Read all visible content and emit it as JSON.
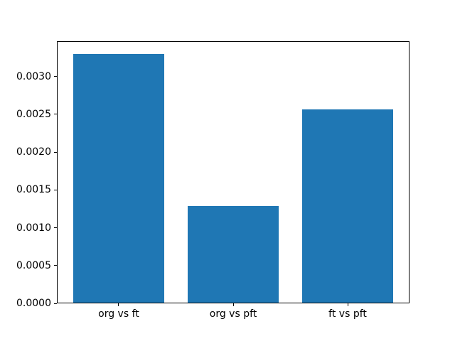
{
  "chart_data": {
    "type": "bar",
    "categories": [
      "org vs ft",
      "org vs pft",
      "ft vs pft"
    ],
    "values": [
      0.0033,
      0.00128,
      0.00257
    ],
    "title": "",
    "xlabel": "",
    "ylabel": "",
    "ylim": [
      0,
      0.003465
    ],
    "xlim": [
      -0.54,
      2.54
    ],
    "bar_width": 0.8,
    "yticks": [
      0,
      0.0005,
      0.001,
      0.0015,
      0.002,
      0.0025,
      0.003
    ],
    "ytick_labels": [
      "0.0000",
      "0.0005",
      "0.0010",
      "0.0015",
      "0.0020",
      "0.0025",
      "0.0030"
    ],
    "bar_color": "#1f77b4",
    "grid": false,
    "legend_position": "none"
  },
  "colors": {
    "bar": "#1f77b4",
    "background": "#ffffff",
    "spine": "#000000",
    "tick_text": "#000000"
  }
}
